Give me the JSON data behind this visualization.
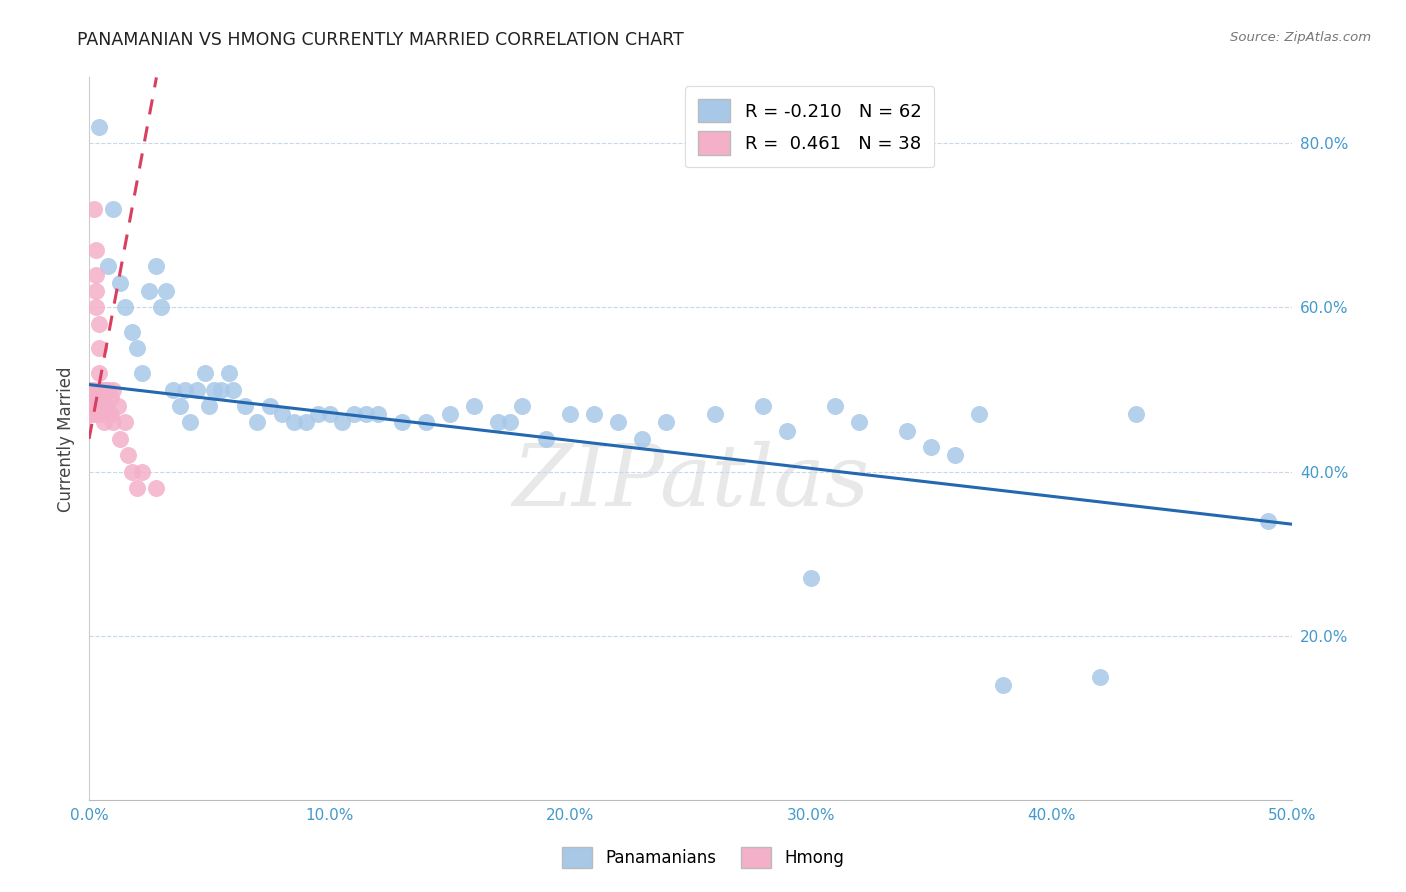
{
  "title": "PANAMANIAN VS HMONG CURRENTLY MARRIED CORRELATION CHART",
  "source": "Source: ZipAtlas.com",
  "ylabel": "Currently Married",
  "x_min": 0.0,
  "x_max": 0.5,
  "y_min": 0.0,
  "y_max": 0.88,
  "x_ticks": [
    0.0,
    0.1,
    0.2,
    0.3,
    0.4,
    0.5
  ],
  "x_tick_labels": [
    "0.0%",
    "10.0%",
    "20.0%",
    "30.0%",
    "40.0%",
    "50.0%"
  ],
  "y_ticks": [
    0.2,
    0.4,
    0.6,
    0.8
  ],
  "y_tick_labels": [
    "20.0%",
    "40.0%",
    "60.0%",
    "80.0%"
  ],
  "blue_R": -0.21,
  "blue_N": 62,
  "pink_R": 0.461,
  "pink_N": 38,
  "blue_color": "#a8c8e8",
  "pink_color": "#f4b0c8",
  "blue_line_color": "#2468b0",
  "pink_line_color": "#d84060",
  "blue_label": "Panamanians",
  "pink_label": "Hmong",
  "watermark": "ZIPatlas",
  "blue_line_x0": 0.0,
  "blue_line_x1": 0.5,
  "blue_line_y0": 0.506,
  "blue_line_y1": 0.336,
  "pink_line_x0": 0.0,
  "pink_line_x1": 0.028,
  "pink_line_y0": 0.44,
  "pink_line_y1": 0.88,
  "blue_x": [
    0.004,
    0.01,
    0.008,
    0.013,
    0.015,
    0.018,
    0.02,
    0.022,
    0.025,
    0.028,
    0.03,
    0.032,
    0.035,
    0.038,
    0.04,
    0.042,
    0.045,
    0.048,
    0.05,
    0.052,
    0.055,
    0.058,
    0.06,
    0.065,
    0.07,
    0.075,
    0.08,
    0.085,
    0.09,
    0.095,
    0.1,
    0.105,
    0.11,
    0.115,
    0.12,
    0.13,
    0.14,
    0.15,
    0.16,
    0.17,
    0.175,
    0.18,
    0.19,
    0.2,
    0.21,
    0.22,
    0.23,
    0.24,
    0.26,
    0.28,
    0.29,
    0.3,
    0.31,
    0.32,
    0.34,
    0.35,
    0.36,
    0.37,
    0.38,
    0.42,
    0.435,
    0.49
  ],
  "blue_y": [
    0.82,
    0.72,
    0.65,
    0.63,
    0.6,
    0.57,
    0.55,
    0.52,
    0.62,
    0.65,
    0.6,
    0.62,
    0.5,
    0.48,
    0.5,
    0.46,
    0.5,
    0.52,
    0.48,
    0.5,
    0.5,
    0.52,
    0.5,
    0.48,
    0.46,
    0.48,
    0.47,
    0.46,
    0.46,
    0.47,
    0.47,
    0.46,
    0.47,
    0.47,
    0.47,
    0.46,
    0.46,
    0.47,
    0.48,
    0.46,
    0.46,
    0.48,
    0.44,
    0.47,
    0.47,
    0.46,
    0.44,
    0.46,
    0.47,
    0.48,
    0.45,
    0.27,
    0.48,
    0.46,
    0.45,
    0.43,
    0.42,
    0.47,
    0.14,
    0.15,
    0.47,
    0.34
  ],
  "pink_x": [
    0.001,
    0.001,
    0.001,
    0.001,
    0.002,
    0.002,
    0.002,
    0.002,
    0.002,
    0.003,
    0.003,
    0.003,
    0.003,
    0.004,
    0.004,
    0.004,
    0.005,
    0.005,
    0.005,
    0.006,
    0.006,
    0.006,
    0.007,
    0.007,
    0.008,
    0.008,
    0.009,
    0.009,
    0.01,
    0.01,
    0.012,
    0.013,
    0.015,
    0.016,
    0.018,
    0.02,
    0.022,
    0.028
  ],
  "pink_y": [
    0.5,
    0.49,
    0.48,
    0.47,
    0.5,
    0.49,
    0.48,
    0.47,
    0.72,
    0.67,
    0.64,
    0.62,
    0.6,
    0.58,
    0.55,
    0.52,
    0.5,
    0.48,
    0.47,
    0.5,
    0.48,
    0.46,
    0.5,
    0.48,
    0.5,
    0.47,
    0.49,
    0.47,
    0.5,
    0.46,
    0.48,
    0.44,
    0.46,
    0.42,
    0.4,
    0.38,
    0.4,
    0.38
  ]
}
